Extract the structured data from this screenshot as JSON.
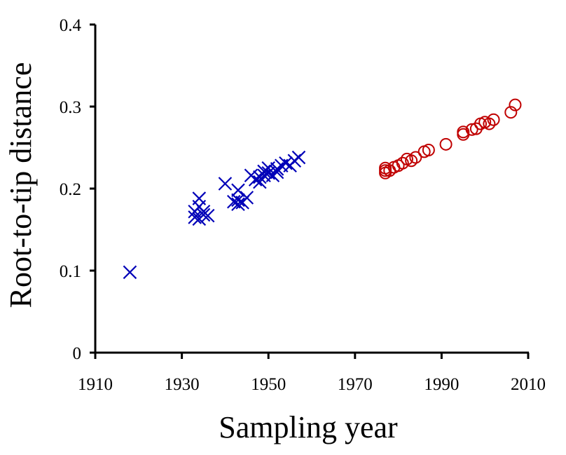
{
  "chart_data": {
    "type": "scatter",
    "title": "",
    "xlabel": "Sampling year",
    "ylabel": "Root-to-tip distance",
    "xlim": [
      1910,
      2010
    ],
    "ylim": [
      0,
      0.4
    ],
    "xticks": [
      1910,
      1930,
      1950,
      1970,
      1990,
      2010
    ],
    "yticks": [
      0,
      0.1,
      0.2,
      0.3,
      0.4
    ],
    "ytick_labels": [
      "0",
      "0.1",
      "0.2",
      "0.3",
      "0.4"
    ],
    "grid": false,
    "legend": "none",
    "series": [
      {
        "marker": "x",
        "color": "#0000b8",
        "points": [
          [
            1918,
            0.098
          ],
          [
            1933,
            0.165
          ],
          [
            1933,
            0.172
          ],
          [
            1934,
            0.178
          ],
          [
            1934,
            0.188
          ],
          [
            1934,
            0.163
          ],
          [
            1935,
            0.168
          ],
          [
            1935,
            0.172
          ],
          [
            1936,
            0.167
          ],
          [
            1940,
            0.206
          ],
          [
            1942,
            0.184
          ],
          [
            1943,
            0.181
          ],
          [
            1943,
            0.186
          ],
          [
            1943,
            0.198
          ],
          [
            1944,
            0.183
          ],
          [
            1945,
            0.189
          ],
          [
            1946,
            0.216
          ],
          [
            1947,
            0.211
          ],
          [
            1948,
            0.214
          ],
          [
            1948,
            0.208
          ],
          [
            1949,
            0.216
          ],
          [
            1949,
            0.221
          ],
          [
            1950,
            0.219
          ],
          [
            1950,
            0.225
          ],
          [
            1951,
            0.216
          ],
          [
            1952,
            0.224
          ],
          [
            1952,
            0.22
          ],
          [
            1953,
            0.228
          ],
          [
            1954,
            0.231
          ],
          [
            1955,
            0.228
          ],
          [
            1956,
            0.234
          ],
          [
            1957,
            0.238
          ]
        ]
      },
      {
        "marker": "o",
        "color": "#c00000",
        "points": [
          [
            1977,
            0.219
          ],
          [
            1977,
            0.222
          ],
          [
            1977,
            0.225
          ],
          [
            1978,
            0.222
          ],
          [
            1979,
            0.226
          ],
          [
            1980,
            0.228
          ],
          [
            1981,
            0.231
          ],
          [
            1982,
            0.236
          ],
          [
            1983,
            0.234
          ],
          [
            1984,
            0.238
          ],
          [
            1986,
            0.245
          ],
          [
            1987,
            0.247
          ],
          [
            1991,
            0.254
          ],
          [
            1995,
            0.266
          ],
          [
            1995,
            0.269
          ],
          [
            1997,
            0.272
          ],
          [
            1998,
            0.273
          ],
          [
            1999,
            0.279
          ],
          [
            2000,
            0.281
          ],
          [
            2001,
            0.279
          ],
          [
            2002,
            0.284
          ],
          [
            2006,
            0.293
          ],
          [
            2007,
            0.302
          ]
        ]
      }
    ]
  }
}
